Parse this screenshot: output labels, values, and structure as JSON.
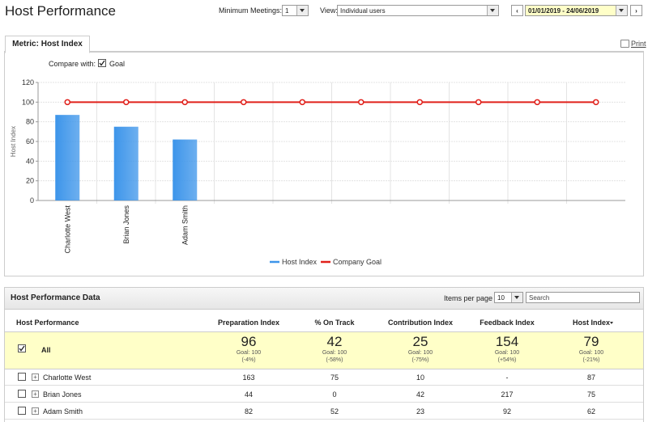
{
  "header": {
    "title": "Host Performance",
    "min_meetings_label": "Minimum Meetings:",
    "min_meetings_value": "1",
    "view_label": "View:",
    "view_value": "Individual users",
    "date_range": "01/01/2019 - 24/06/2019"
  },
  "metric_panel": {
    "tab": "Metric: Host Index",
    "print": "Print",
    "compare_label": "Compare with:",
    "compare_option": "Goal"
  },
  "chart_data": {
    "type": "bar",
    "y_label": "Host Index",
    "categories": [
      "Charlotte West",
      "Brian Jones",
      "Adam Smith",
      null,
      null,
      null,
      null,
      null,
      null,
      null
    ],
    "series": [
      {
        "name": "Host Index",
        "type": "bar",
        "color": "#3d95ea",
        "values": [
          87,
          75,
          62,
          null,
          null,
          null,
          null,
          null,
          null,
          null
        ]
      },
      {
        "name": "Company Goal",
        "type": "line",
        "color": "#e0201b",
        "values": [
          100,
          100,
          100,
          100,
          100,
          100,
          100,
          100,
          100,
          100
        ]
      }
    ],
    "ylim": [
      0,
      120
    ],
    "yticks": [
      0,
      20,
      40,
      60,
      80,
      100,
      120
    ],
    "grid": true,
    "legend": "bottom"
  },
  "data_panel": {
    "title": "Host Performance Data",
    "items_per_page_label": "Items per page",
    "items_per_page": "10",
    "search_placeholder": "Search"
  },
  "table": {
    "columns": [
      "Host Performance",
      "Preparation Index",
      "% On Track",
      "Contribution Index",
      "Feedback Index",
      "Host Index"
    ],
    "summary": {
      "name": "All",
      "cells": [
        {
          "value": 96,
          "goal": "Goal: 100",
          "delta": "(-4%)"
        },
        {
          "value": 42,
          "goal": "Goal: 100",
          "delta": "(-58%)"
        },
        {
          "value": 25,
          "goal": "Goal: 100",
          "delta": "(-75%)"
        },
        {
          "value": 154,
          "goal": "Goal: 100",
          "delta": "(+54%)"
        },
        {
          "value": 79,
          "goal": "Goal: 100",
          "delta": "(-21%)"
        }
      ]
    },
    "rows": [
      [
        "Charlotte West",
        163,
        75,
        10,
        "-",
        87
      ],
      [
        "Brian Jones",
        44,
        0,
        42,
        217,
        75
      ],
      [
        "Adam Smith",
        82,
        52,
        23,
        92,
        62
      ]
    ]
  }
}
